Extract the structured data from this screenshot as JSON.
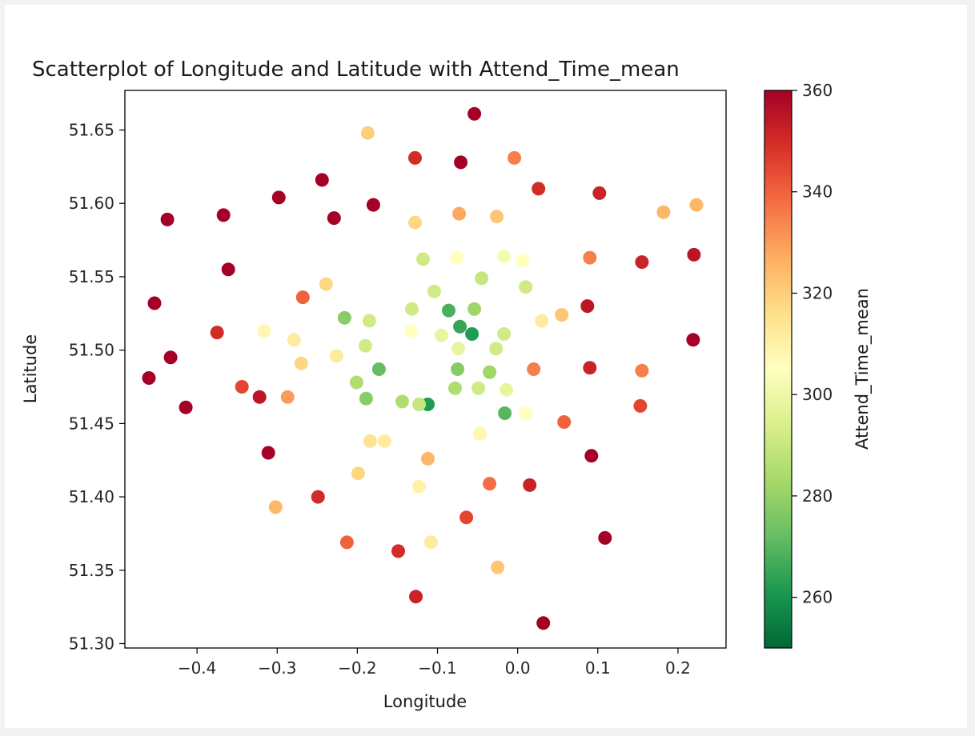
{
  "chart_data": {
    "type": "scatter",
    "title": "Scatterplot of Longitude and Latitude with Attend_Time_mean",
    "xlabel": "Longitude",
    "ylabel": "Latitude",
    "colorbar_label": "Attend_Time_mean",
    "colormap": "RdYlGn_r",
    "xlim": [
      -0.49,
      0.26
    ],
    "ylim": [
      51.297,
      51.677
    ],
    "clim": [
      250,
      360
    ],
    "xticks": [
      -0.4,
      -0.3,
      -0.2,
      -0.1,
      0.0,
      0.1,
      0.2
    ],
    "xtick_labels": [
      "−0.4",
      "−0.3",
      "−0.2",
      "−0.1",
      "0.0",
      "0.1",
      "0.2"
    ],
    "yticks": [
      51.3,
      51.35,
      51.4,
      51.45,
      51.5,
      51.55,
      51.6,
      51.65
    ],
    "ytick_labels": [
      "51.30",
      "51.35",
      "51.40",
      "51.45",
      "51.50",
      "51.55",
      "51.60",
      "51.65"
    ],
    "cticks": [
      260,
      280,
      300,
      320,
      340,
      360
    ],
    "ctick_labels": [
      "260",
      "280",
      "300",
      "320",
      "340",
      "360"
    ],
    "grid": false,
    "points": [
      {
        "x": -0.054,
        "y": 51.661,
        "c": 360
      },
      {
        "x": -0.187,
        "y": 51.648,
        "c": 320
      },
      {
        "x": -0.128,
        "y": 51.631,
        "c": 350
      },
      {
        "x": -0.071,
        "y": 51.628,
        "c": 360
      },
      {
        "x": -0.004,
        "y": 51.631,
        "c": 335
      },
      {
        "x": -0.244,
        "y": 51.616,
        "c": 360
      },
      {
        "x": 0.026,
        "y": 51.61,
        "c": 350
      },
      {
        "x": 0.102,
        "y": 51.607,
        "c": 352
      },
      {
        "x": -0.298,
        "y": 51.604,
        "c": 360
      },
      {
        "x": -0.18,
        "y": 51.599,
        "c": 360
      },
      {
        "x": 0.223,
        "y": 51.599,
        "c": 325
      },
      {
        "x": -0.073,
        "y": 51.593,
        "c": 328
      },
      {
        "x": 0.182,
        "y": 51.594,
        "c": 325
      },
      {
        "x": -0.367,
        "y": 51.592,
        "c": 360
      },
      {
        "x": -0.437,
        "y": 51.589,
        "c": 360
      },
      {
        "x": -0.229,
        "y": 51.59,
        "c": 360
      },
      {
        "x": -0.026,
        "y": 51.591,
        "c": 322
      },
      {
        "x": -0.128,
        "y": 51.587,
        "c": 318
      },
      {
        "x": 0.22,
        "y": 51.565,
        "c": 355
      },
      {
        "x": -0.017,
        "y": 51.564,
        "c": 302
      },
      {
        "x": -0.076,
        "y": 51.563,
        "c": 305
      },
      {
        "x": -0.118,
        "y": 51.562,
        "c": 292
      },
      {
        "x": 0.09,
        "y": 51.563,
        "c": 335
      },
      {
        "x": 0.006,
        "y": 51.561,
        "c": 305
      },
      {
        "x": 0.155,
        "y": 51.56,
        "c": 352
      },
      {
        "x": -0.361,
        "y": 51.555,
        "c": 360
      },
      {
        "x": -0.045,
        "y": 51.549,
        "c": 290
      },
      {
        "x": -0.239,
        "y": 51.545,
        "c": 318
      },
      {
        "x": 0.01,
        "y": 51.543,
        "c": 292
      },
      {
        "x": -0.104,
        "y": 51.54,
        "c": 292
      },
      {
        "x": -0.268,
        "y": 51.536,
        "c": 340
      },
      {
        "x": -0.453,
        "y": 51.532,
        "c": 360
      },
      {
        "x": 0.087,
        "y": 51.53,
        "c": 355
      },
      {
        "x": -0.054,
        "y": 51.528,
        "c": 282
      },
      {
        "x": -0.086,
        "y": 51.527,
        "c": 268
      },
      {
        "x": -0.132,
        "y": 51.528,
        "c": 292
      },
      {
        "x": 0.055,
        "y": 51.524,
        "c": 322
      },
      {
        "x": -0.216,
        "y": 51.522,
        "c": 278
      },
      {
        "x": -0.185,
        "y": 51.52,
        "c": 292
      },
      {
        "x": 0.03,
        "y": 51.52,
        "c": 312
      },
      {
        "x": -0.072,
        "y": 51.516,
        "c": 265
      },
      {
        "x": -0.057,
        "y": 51.511,
        "c": 262
      },
      {
        "x": -0.133,
        "y": 51.513,
        "c": 305
      },
      {
        "x": -0.316,
        "y": 51.513,
        "c": 308
      },
      {
        "x": -0.095,
        "y": 51.51,
        "c": 298
      },
      {
        "x": -0.017,
        "y": 51.511,
        "c": 292
      },
      {
        "x": -0.375,
        "y": 51.512,
        "c": 350
      },
      {
        "x": 0.219,
        "y": 51.507,
        "c": 360
      },
      {
        "x": -0.279,
        "y": 51.507,
        "c": 312
      },
      {
        "x": -0.027,
        "y": 51.501,
        "c": 292
      },
      {
        "x": -0.074,
        "y": 51.501,
        "c": 298
      },
      {
        "x": -0.19,
        "y": 51.503,
        "c": 292
      },
      {
        "x": -0.226,
        "y": 51.496,
        "c": 312
      },
      {
        "x": -0.433,
        "y": 51.495,
        "c": 360
      },
      {
        "x": -0.27,
        "y": 51.491,
        "c": 318
      },
      {
        "x": 0.09,
        "y": 51.488,
        "c": 352
      },
      {
        "x": -0.173,
        "y": 51.487,
        "c": 272
      },
      {
        "x": -0.075,
        "y": 51.487,
        "c": 278
      },
      {
        "x": 0.02,
        "y": 51.487,
        "c": 335
      },
      {
        "x": 0.155,
        "y": 51.486,
        "c": 335
      },
      {
        "x": -0.035,
        "y": 51.485,
        "c": 282
      },
      {
        "x": -0.46,
        "y": 51.481,
        "c": 360
      },
      {
        "x": -0.201,
        "y": 51.478,
        "c": 285
      },
      {
        "x": -0.344,
        "y": 51.475,
        "c": 345
      },
      {
        "x": -0.078,
        "y": 51.474,
        "c": 285
      },
      {
        "x": -0.049,
        "y": 51.474,
        "c": 292
      },
      {
        "x": -0.014,
        "y": 51.473,
        "c": 298
      },
      {
        "x": -0.322,
        "y": 51.468,
        "c": 355
      },
      {
        "x": -0.287,
        "y": 51.468,
        "c": 330
      },
      {
        "x": -0.189,
        "y": 51.467,
        "c": 278
      },
      {
        "x": -0.144,
        "y": 51.465,
        "c": 285
      },
      {
        "x": -0.112,
        "y": 51.463,
        "c": 262
      },
      {
        "x": -0.123,
        "y": 51.463,
        "c": 290
      },
      {
        "x": -0.414,
        "y": 51.461,
        "c": 360
      },
      {
        "x": 0.153,
        "y": 51.462,
        "c": 345
      },
      {
        "x": -0.016,
        "y": 51.457,
        "c": 270
      },
      {
        "x": 0.01,
        "y": 51.457,
        "c": 305
      },
      {
        "x": 0.058,
        "y": 51.451,
        "c": 340
      },
      {
        "x": -0.047,
        "y": 51.443,
        "c": 308
      },
      {
        "x": -0.184,
        "y": 51.438,
        "c": 315
      },
      {
        "x": -0.166,
        "y": 51.438,
        "c": 312
      },
      {
        "x": -0.311,
        "y": 51.43,
        "c": 360
      },
      {
        "x": 0.092,
        "y": 51.428,
        "c": 360
      },
      {
        "x": -0.112,
        "y": 51.426,
        "c": 325
      },
      {
        "x": -0.199,
        "y": 51.416,
        "c": 318
      },
      {
        "x": -0.035,
        "y": 51.409,
        "c": 338
      },
      {
        "x": 0.015,
        "y": 51.408,
        "c": 352
      },
      {
        "x": -0.123,
        "y": 51.407,
        "c": 310
      },
      {
        "x": -0.249,
        "y": 51.4,
        "c": 350
      },
      {
        "x": -0.302,
        "y": 51.393,
        "c": 325
      },
      {
        "x": -0.064,
        "y": 51.386,
        "c": 345
      },
      {
        "x": 0.109,
        "y": 51.372,
        "c": 360
      },
      {
        "x": -0.108,
        "y": 51.369,
        "c": 312
      },
      {
        "x": -0.213,
        "y": 51.369,
        "c": 340
      },
      {
        "x": -0.149,
        "y": 51.363,
        "c": 350
      },
      {
        "x": -0.025,
        "y": 51.352,
        "c": 322
      },
      {
        "x": -0.127,
        "y": 51.332,
        "c": 352
      },
      {
        "x": 0.032,
        "y": 51.314,
        "c": 360
      }
    ]
  }
}
